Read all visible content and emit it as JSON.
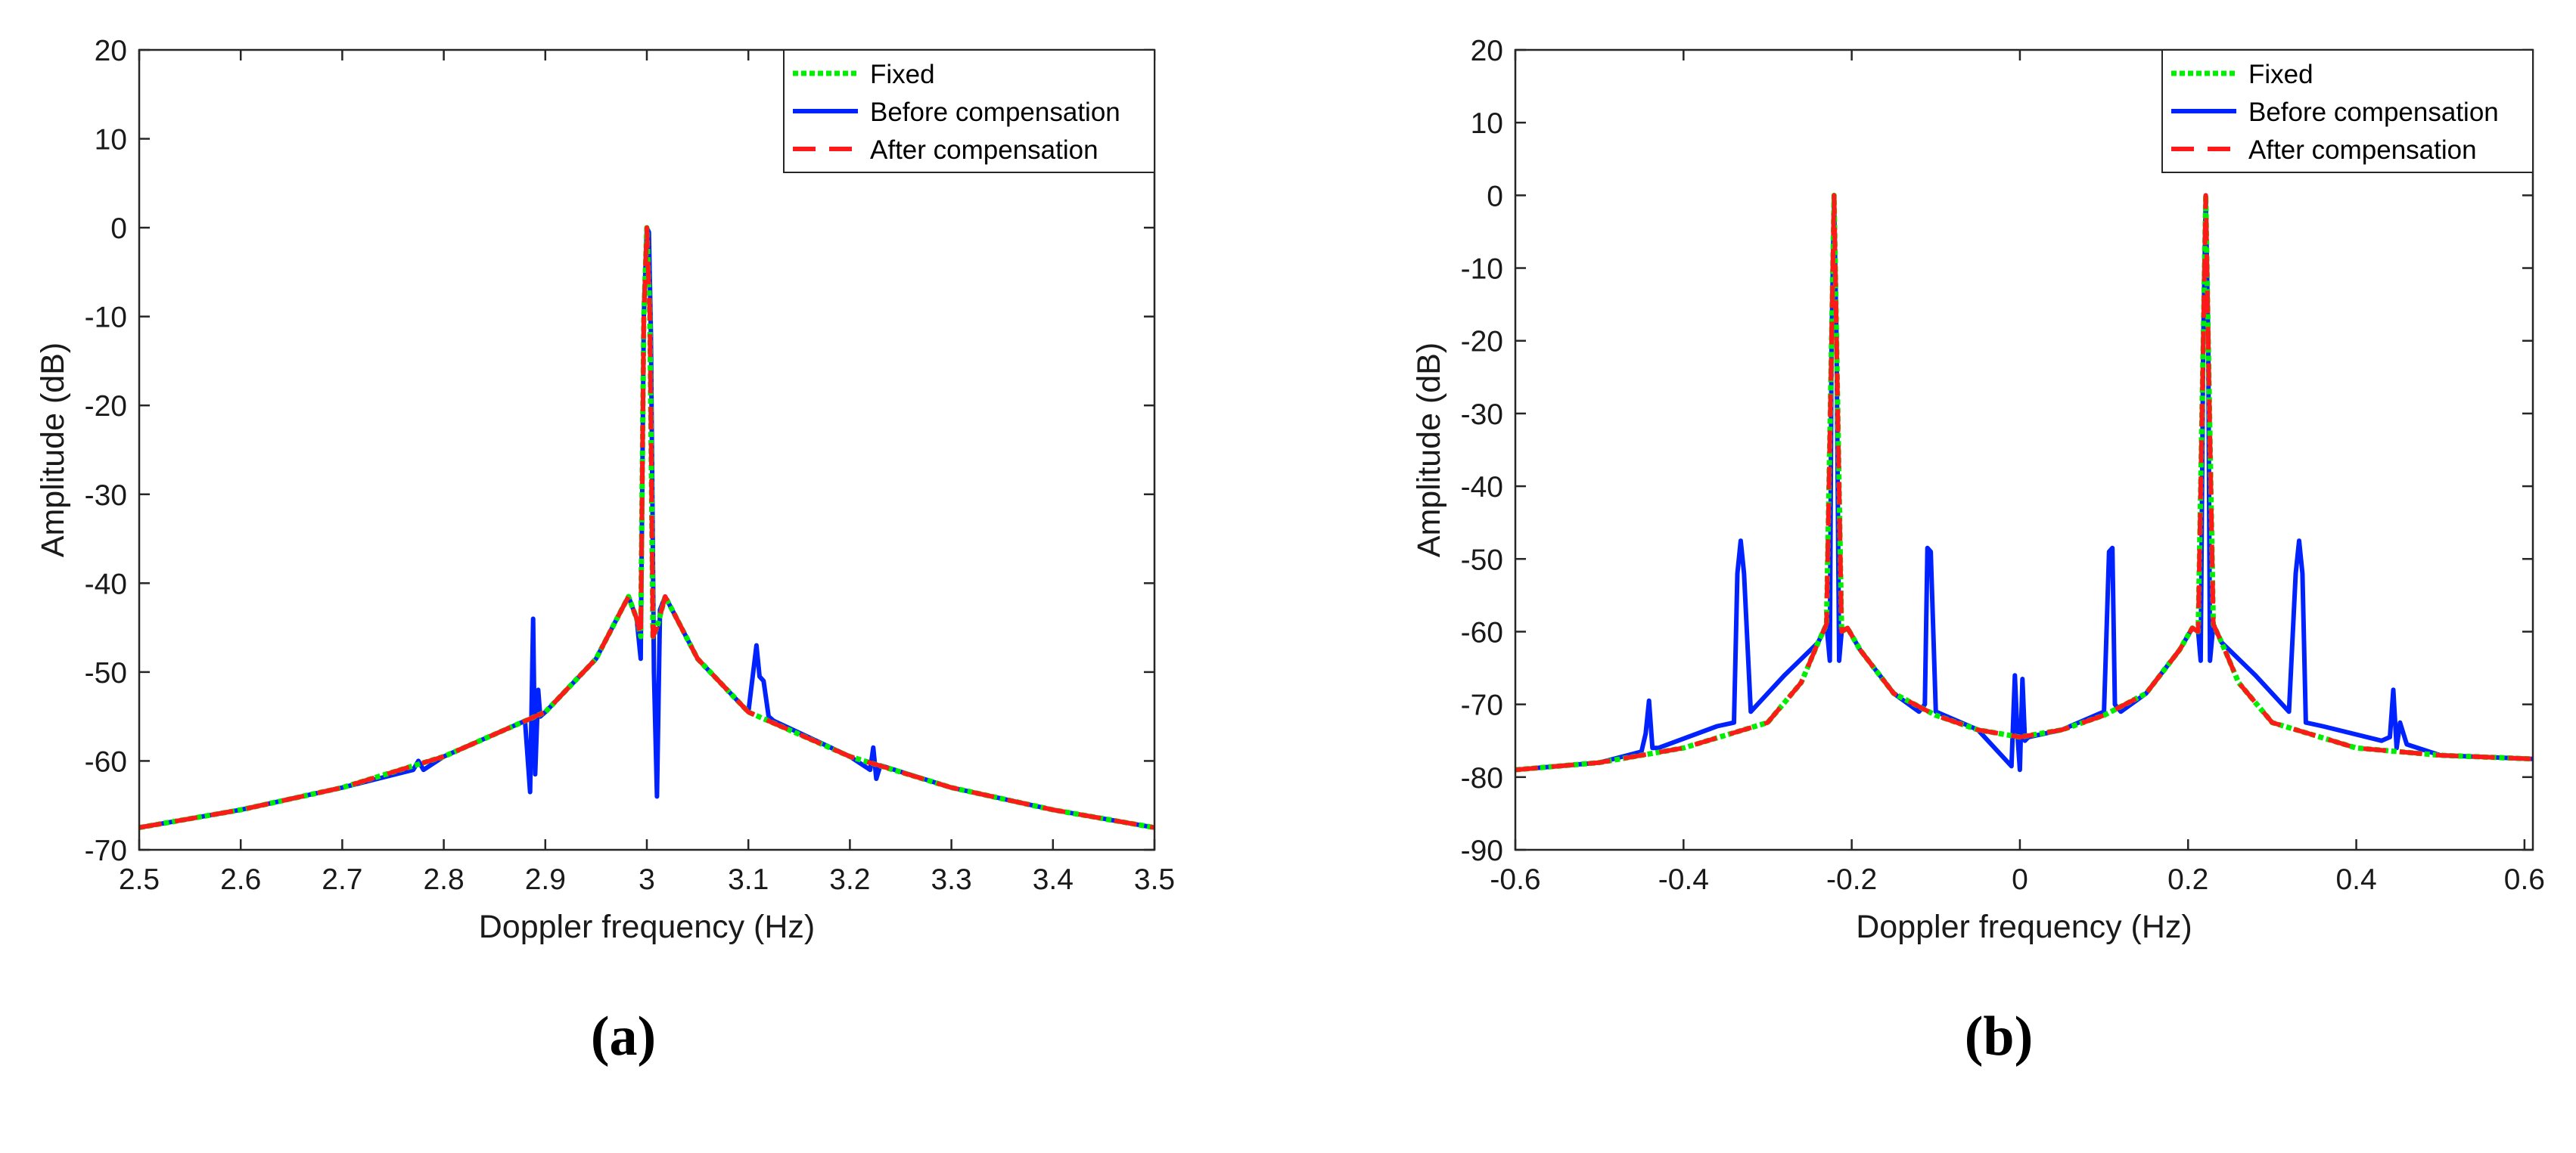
{
  "chart_data": [
    {
      "type": "line",
      "panel_label": "(a)",
      "xlabel": "Doppler frequency (Hz)",
      "ylabel": "Amplitude (dB)",
      "xlim": [
        2.5,
        3.5
      ],
      "ylim": [
        -70,
        20
      ],
      "xticks": [
        2.5,
        2.6,
        2.7,
        2.8,
        2.9,
        3.0,
        3.1,
        3.2,
        3.3,
        3.4,
        3.5
      ],
      "xtick_labels": [
        "2.5",
        "2.6",
        "2.7",
        "2.8",
        "2.9",
        "3",
        "3.1",
        "3.2",
        "3.3",
        "3.4",
        "3.5"
      ],
      "yticks": [
        -70,
        -60,
        -50,
        -40,
        -30,
        -20,
        -10,
        0,
        10,
        20
      ],
      "ytick_labels": [
        "-70",
        "-60",
        "-50",
        "-40",
        "-30",
        "-20",
        "-10",
        "0",
        "10",
        "20"
      ],
      "legend_position": "top-right",
      "series": [
        {
          "name": "Fixed",
          "color": "#00ee00",
          "style": "dotted",
          "x": [
            2.5,
            2.6,
            2.7,
            2.8,
            2.9,
            2.95,
            2.975,
            2.982,
            2.99,
            2.994,
            2.997,
            3.0,
            3.003,
            3.006,
            3.01,
            3.018,
            3.025,
            3.05,
            3.1,
            3.2,
            3.3,
            3.4,
            3.5
          ],
          "y": [
            -67.5,
            -65.5,
            -63.0,
            -59.5,
            -54.5,
            -48.5,
            -43.0,
            -41.5,
            -44.0,
            -46.0,
            -10.0,
            0.0,
            -10.0,
            -46.0,
            -45.0,
            -41.5,
            -43.0,
            -48.5,
            -54.5,
            -59.5,
            -63.0,
            -65.5,
            -67.5
          ]
        },
        {
          "name": "Before compensation",
          "color": "#0022ff",
          "style": "solid",
          "x": [
            2.5,
            2.6,
            2.7,
            2.77,
            2.775,
            2.78,
            2.8,
            2.88,
            2.885,
            2.888,
            2.89,
            2.893,
            2.895,
            2.9,
            2.95,
            2.975,
            2.982,
            2.99,
            2.994,
            2.997,
            3.0,
            3.002,
            3.004,
            3.007,
            3.01,
            3.013,
            3.018,
            3.025,
            3.05,
            3.1,
            3.108,
            3.111,
            3.115,
            3.12,
            3.125,
            3.2,
            3.22,
            3.223,
            3.226,
            3.23,
            3.3,
            3.4,
            3.5
          ],
          "y": [
            -67.5,
            -65.5,
            -63.0,
            -61.0,
            -60.0,
            -61.0,
            -59.5,
            -55.5,
            -63.5,
            -44.0,
            -61.5,
            -52.0,
            -55.0,
            -54.5,
            -48.5,
            -43.0,
            -41.5,
            -44.0,
            -48.5,
            -10.0,
            0.0,
            -0.5,
            -12.0,
            -50.0,
            -64.0,
            -43.0,
            -41.5,
            -43.0,
            -48.5,
            -54.5,
            -47.0,
            -50.5,
            -51.0,
            -55.0,
            -55.5,
            -59.5,
            -61.0,
            -58.5,
            -62.0,
            -60.5,
            -63.0,
            -65.5,
            -67.5
          ]
        },
        {
          "name": "After compensation",
          "color": "#ff1a1a",
          "style": "dashed",
          "x": [
            2.5,
            2.6,
            2.7,
            2.8,
            2.9,
            2.95,
            2.975,
            2.982,
            2.99,
            2.994,
            2.997,
            3.0,
            3.003,
            3.006,
            3.01,
            3.018,
            3.025,
            3.05,
            3.1,
            3.2,
            3.3,
            3.4,
            3.5
          ],
          "y": [
            -67.5,
            -65.5,
            -63.0,
            -59.5,
            -54.5,
            -48.5,
            -43.0,
            -41.5,
            -44.0,
            -46.0,
            -10.0,
            0.0,
            -10.0,
            -46.0,
            -45.0,
            -41.5,
            -43.0,
            -48.5,
            -54.5,
            -59.5,
            -63.0,
            -65.5,
            -67.5
          ]
        }
      ]
    },
    {
      "type": "line",
      "panel_label": "(b)",
      "xlabel": "Doppler frequency (Hz)",
      "ylabel": "Amplitude (dB)",
      "xlim": [
        -0.6,
        0.61
      ],
      "ylim": [
        -90,
        20
      ],
      "xticks": [
        -0.6,
        -0.4,
        -0.2,
        0,
        0.2,
        0.4,
        0.6
      ],
      "xtick_labels": [
        "-0.6",
        "-0.4",
        "-0.2",
        "0",
        "0.2",
        "0.4",
        "0.6"
      ],
      "yticks": [
        -90,
        -80,
        -70,
        -60,
        -50,
        -40,
        -30,
        -20,
        -10,
        0,
        10,
        20
      ],
      "ytick_labels": [
        "-90",
        "-80",
        "-70",
        "-60",
        "-50",
        "-40",
        "-30",
        "-20",
        "-10",
        "0",
        "10",
        "20"
      ],
      "legend_position": "top-right",
      "series": [
        {
          "name": "Fixed",
          "color": "#00ee00",
          "style": "dotted",
          "x": [
            -0.6,
            -0.5,
            -0.4,
            -0.3,
            -0.26,
            -0.24,
            -0.23,
            -0.224,
            -0.221,
            -0.218,
            -0.212,
            -0.205,
            -0.19,
            -0.15,
            -0.1,
            -0.05,
            0.0,
            0.05,
            0.1,
            0.15,
            0.19,
            0.205,
            0.212,
            0.218,
            0.221,
            0.224,
            0.23,
            0.24,
            0.26,
            0.3,
            0.4,
            0.5,
            0.61
          ],
          "y": [
            -79.0,
            -78.0,
            -76.0,
            -72.5,
            -67.0,
            -61.5,
            -59.0,
            -20.0,
            0.0,
            -20.0,
            -60.0,
            -59.5,
            -62.5,
            -68.5,
            -71.5,
            -73.5,
            -74.5,
            -73.5,
            -71.5,
            -68.5,
            -62.5,
            -59.5,
            -60.0,
            -20.0,
            0.0,
            -20.0,
            -59.0,
            -61.5,
            -67.0,
            -72.5,
            -76.0,
            -77.0,
            -77.5
          ]
        },
        {
          "name": "Before compensation",
          "color": "#0022ff",
          "style": "solid",
          "x": [
            -0.6,
            -0.5,
            -0.45,
            -0.445,
            -0.441,
            -0.437,
            -0.43,
            -0.36,
            -0.34,
            -0.336,
            -0.332,
            -0.328,
            -0.32,
            -0.28,
            -0.24,
            -0.23,
            -0.226,
            -0.224,
            -0.221,
            -0.218,
            -0.215,
            -0.212,
            -0.205,
            -0.19,
            -0.15,
            -0.12,
            -0.113,
            -0.11,
            -0.106,
            -0.1,
            -0.05,
            -0.01,
            -0.006,
            -0.003,
            0.0,
            0.003,
            0.006,
            0.01,
            0.05,
            0.1,
            0.106,
            0.11,
            0.113,
            0.12,
            0.15,
            0.19,
            0.205,
            0.212,
            0.215,
            0.218,
            0.221,
            0.224,
            0.226,
            0.23,
            0.24,
            0.28,
            0.32,
            0.328,
            0.332,
            0.336,
            0.34,
            0.36,
            0.43,
            0.44,
            0.444,
            0.448,
            0.452,
            0.46,
            0.5,
            0.61
          ],
          "y": [
            -79.0,
            -78.0,
            -76.5,
            -74.0,
            -69.5,
            -76.0,
            -76.0,
            -73.0,
            -72.5,
            -52.0,
            -47.5,
            -52.0,
            -71.0,
            -66.0,
            -61.5,
            -59.0,
            -64.0,
            -20.0,
            0.0,
            -20.0,
            -64.0,
            -60.0,
            -59.5,
            -62.5,
            -68.5,
            -71.0,
            -70.0,
            -48.5,
            -49.0,
            -71.0,
            -73.5,
            -78.5,
            -66.0,
            -74.0,
            -79.0,
            -66.5,
            -75.0,
            -74.5,
            -73.5,
            -71.0,
            -49.0,
            -48.5,
            -70.0,
            -71.0,
            -68.5,
            -62.5,
            -59.5,
            -60.0,
            -64.0,
            -20.0,
            0.0,
            -20.0,
            -64.0,
            -59.0,
            -61.5,
            -66.0,
            -71.0,
            -52.0,
            -47.5,
            -52.0,
            -72.5,
            -73.0,
            -75.0,
            -74.5,
            -68.0,
            -76.0,
            -72.5,
            -75.5,
            -77.0,
            -77.5
          ]
        },
        {
          "name": "After compensation",
          "color": "#ff1a1a",
          "style": "dashed",
          "x": [
            -0.6,
            -0.5,
            -0.4,
            -0.3,
            -0.26,
            -0.24,
            -0.23,
            -0.224,
            -0.221,
            -0.218,
            -0.212,
            -0.205,
            -0.19,
            -0.15,
            -0.1,
            -0.05,
            0.0,
            0.05,
            0.1,
            0.15,
            0.19,
            0.205,
            0.212,
            0.218,
            0.221,
            0.224,
            0.23,
            0.24,
            0.26,
            0.3,
            0.4,
            0.5,
            0.61
          ],
          "y": [
            -79.0,
            -78.0,
            -76.0,
            -72.5,
            -67.0,
            -61.5,
            -59.0,
            -20.0,
            0.0,
            -20.0,
            -60.0,
            -59.5,
            -62.5,
            -68.5,
            -71.5,
            -73.5,
            -74.5,
            -73.5,
            -71.5,
            -68.5,
            -62.5,
            -59.5,
            -60.0,
            -20.0,
            0.0,
            -20.0,
            -59.0,
            -61.5,
            -67.0,
            -72.5,
            -76.0,
            -77.0,
            -77.5
          ]
        }
      ]
    }
  ]
}
